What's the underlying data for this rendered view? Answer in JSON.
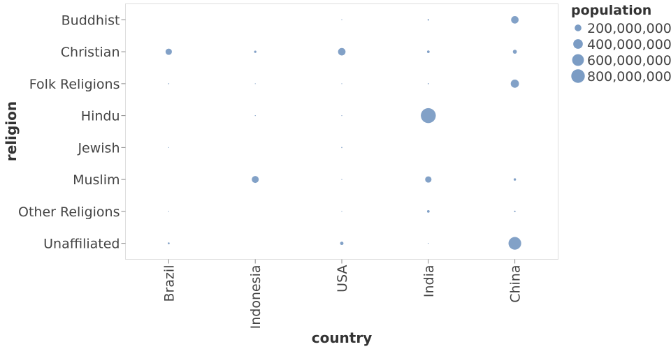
{
  "chart_data": {
    "type": "scatter",
    "xlabel": "country",
    "ylabel": "religion",
    "categories_x": [
      "Brazil",
      "Indonesia",
      "USA",
      "India",
      "China"
    ],
    "categories_y": [
      "Buddhist",
      "Christian",
      "Folk Religions",
      "Hindu",
      "Jewish",
      "Muslim",
      "Other Religions",
      "Unaffiliated"
    ],
    "size_field": "population",
    "point_color": "#7b9cc4",
    "grid": false,
    "legend": {
      "title": "population",
      "placement": "top-right",
      "entries": [
        {
          "label": "200,000,000",
          "value": 200000000
        },
        {
          "label": "400,000,000",
          "value": 400000000
        },
        {
          "label": "600,000,000",
          "value": 600000000
        },
        {
          "label": "800,000,000",
          "value": 800000000
        }
      ]
    },
    "points": [
      {
        "country": "Brazil",
        "religion": "Christian",
        "population": 175000000
      },
      {
        "country": "Brazil",
        "religion": "Folk Religions",
        "population": 5000000
      },
      {
        "country": "Brazil",
        "religion": "Unaffiliated",
        "population": 15000000
      },
      {
        "country": "Brazil",
        "religion": "Jewish",
        "population": 500000
      },
      {
        "country": "Brazil",
        "religion": "Other Religions",
        "population": 500000
      },
      {
        "country": "Indonesia",
        "religion": "Christian",
        "population": 24000000
      },
      {
        "country": "Indonesia",
        "religion": "Muslim",
        "population": 210000000
      },
      {
        "country": "Indonesia",
        "religion": "Folk Religions",
        "population": 1000000
      },
      {
        "country": "Indonesia",
        "religion": "Hindu",
        "population": 4000000
      },
      {
        "country": "USA",
        "religion": "Christian",
        "population": 245000000
      },
      {
        "country": "USA",
        "religion": "Unaffiliated",
        "population": 50000000
      },
      {
        "country": "USA",
        "religion": "Buddhist",
        "population": 4000000
      },
      {
        "country": "USA",
        "religion": "Jewish",
        "population": 6000000
      },
      {
        "country": "USA",
        "religion": "Hindu",
        "population": 2000000
      },
      {
        "country": "USA",
        "religion": "Muslim",
        "population": 3000000
      },
      {
        "country": "USA",
        "religion": "Other Religions",
        "population": 2000000
      },
      {
        "country": "USA",
        "religion": "Folk Religions",
        "population": 1000000
      },
      {
        "country": "India",
        "religion": "Hindu",
        "population": 975000000
      },
      {
        "country": "India",
        "religion": "Muslim",
        "population": 175000000
      },
      {
        "country": "India",
        "religion": "Christian",
        "population": 30000000
      },
      {
        "country": "India",
        "religion": "Other Religions",
        "population": 30000000
      },
      {
        "country": "India",
        "religion": "Buddhist",
        "population": 10000000
      },
      {
        "country": "India",
        "religion": "Folk Religions",
        "population": 6000000
      },
      {
        "country": "India",
        "religion": "Unaffiliated",
        "population": 1000000
      },
      {
        "country": "China",
        "religion": "Unaffiliated",
        "population": 700000000
      },
      {
        "country": "China",
        "religion": "Buddhist",
        "population": 245000000
      },
      {
        "country": "China",
        "religion": "Folk Religions",
        "population": 295000000
      },
      {
        "country": "China",
        "religion": "Christian",
        "population": 70000000
      },
      {
        "country": "China",
        "religion": "Muslim",
        "population": 25000000
      },
      {
        "country": "China",
        "religion": "Other Religions",
        "population": 10000000
      }
    ]
  }
}
